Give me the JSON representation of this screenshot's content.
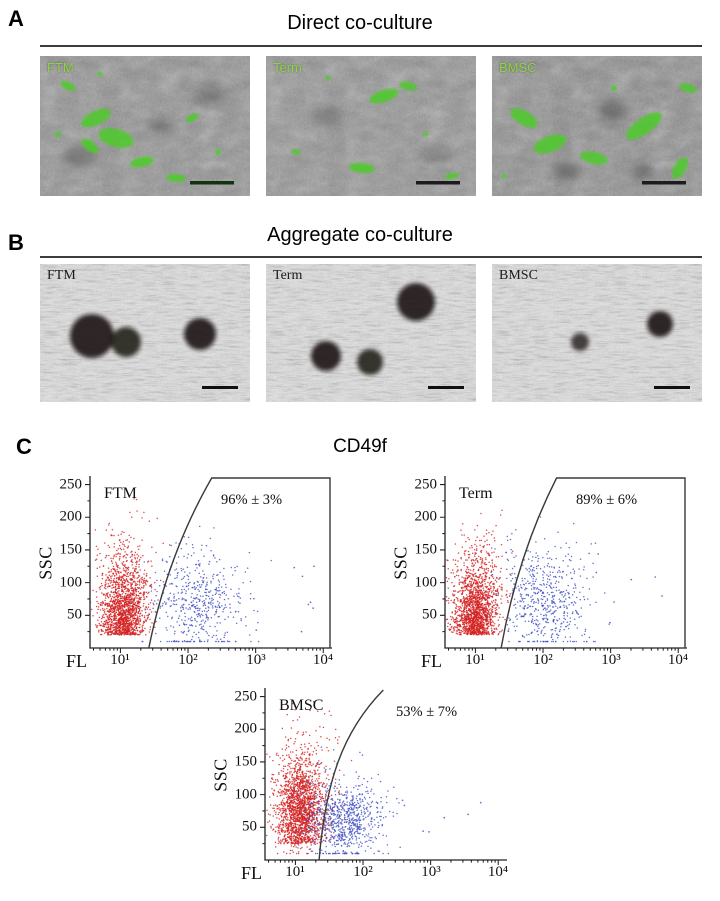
{
  "panels": {
    "a": {
      "label": "A",
      "title": "Direct co-culture",
      "images": [
        {
          "label": "FTM"
        },
        {
          "label": "Term"
        },
        {
          "label": "BMSC"
        }
      ]
    },
    "b": {
      "label": "B",
      "title": "Aggregate co-culture",
      "images": [
        {
          "label": "FTM"
        },
        {
          "label": "Term"
        },
        {
          "label": "BMSC"
        }
      ]
    },
    "c": {
      "label": "C",
      "title": "CD49f"
    }
  },
  "chart_data": {
    "type": "scatter",
    "title": "CD49f",
    "xlabel": "FL",
    "ylabel": "SSC",
    "x_scale": "log10",
    "x_range_log": [
      0.55,
      4.1
    ],
    "y_range": [
      0,
      260
    ],
    "x_tick_logs": [
      1,
      2,
      3,
      4
    ],
    "x_tick_labels": [
      "10¹",
      "10²",
      "10³",
      "10⁴"
    ],
    "y_ticks": [
      "250",
      "200",
      "150",
      "100",
      "50"
    ],
    "colors": {
      "neg": "#d42222",
      "pos": "#3f51c1"
    },
    "plots": [
      {
        "name": "FTM",
        "stat": "96% ± 3%",
        "percent_gated": 96,
        "percent_sd": 3,
        "seed": 11,
        "gate": {
          "style": "closed",
          "bottom_log": 1.42,
          "top_log": 2.35,
          "bend": 0.3
        },
        "clusters": [
          {
            "color": "neg",
            "shape": "comet",
            "n": 1700,
            "x_mean": 1.02,
            "x_sd": 0.15,
            "y_base": 20,
            "y_spread": 60,
            "fan": 0.7,
            "drift": 0.12
          },
          {
            "color": "pos",
            "shape": "blob",
            "n": 520,
            "x_mean": 2.15,
            "x_sd": 0.34,
            "y_mean": 68,
            "y_sd": 42
          }
        ],
        "sparse": {
          "color": "pos",
          "n": 9,
          "x_min": 2.6,
          "x_max": 3.95,
          "y_min": 20,
          "y_max": 150
        }
      },
      {
        "name": "Term",
        "stat": "89% ± 6%",
        "percent_gated": 89,
        "percent_sd": 6,
        "seed": 23,
        "gate": {
          "style": "closed",
          "bottom_log": 1.38,
          "top_log": 2.2,
          "bend": 0.3
        },
        "clusters": [
          {
            "color": "neg",
            "shape": "comet",
            "n": 1700,
            "x_mean": 0.98,
            "x_sd": 0.14,
            "y_base": 20,
            "y_spread": 56,
            "fan": 0.7,
            "drift": 0.1
          },
          {
            "color": "pos",
            "shape": "blob",
            "n": 560,
            "x_mean": 2.02,
            "x_sd": 0.33,
            "y_mean": 75,
            "y_sd": 45
          }
        ],
        "sparse": {
          "color": "pos",
          "n": 8,
          "x_min": 2.6,
          "x_max": 3.9,
          "y_min": 25,
          "y_max": 150
        }
      },
      {
        "name": "BMSC",
        "stat": "53% ± 7%",
        "percent_gated": 53,
        "percent_sd": 7,
        "seed": 37,
        "gate": {
          "style": "curve",
          "bottom_log": 1.35,
          "top_log": 2.3,
          "bend": 0.6
        },
        "clusters": [
          {
            "color": "neg",
            "shape": "comet",
            "n": 1100,
            "x_mean": 1.05,
            "x_sd": 0.16,
            "y_base": 25,
            "y_spread": 70,
            "fan": 0.9,
            "drift": 0.08
          },
          {
            "color": "neg",
            "shape": "blob",
            "n": 800,
            "x_mean": 1.08,
            "x_sd": 0.15,
            "y_mean": 85,
            "y_sd": 35
          },
          {
            "color": "pos",
            "shape": "blob",
            "n": 750,
            "x_mean": 1.72,
            "x_sd": 0.27,
            "y_mean": 62,
            "y_sd": 33
          }
        ],
        "sparse": {
          "color": "pos",
          "n": 7,
          "x_min": 2.4,
          "x_max": 3.8,
          "y_min": 30,
          "y_max": 100
        }
      }
    ]
  }
}
